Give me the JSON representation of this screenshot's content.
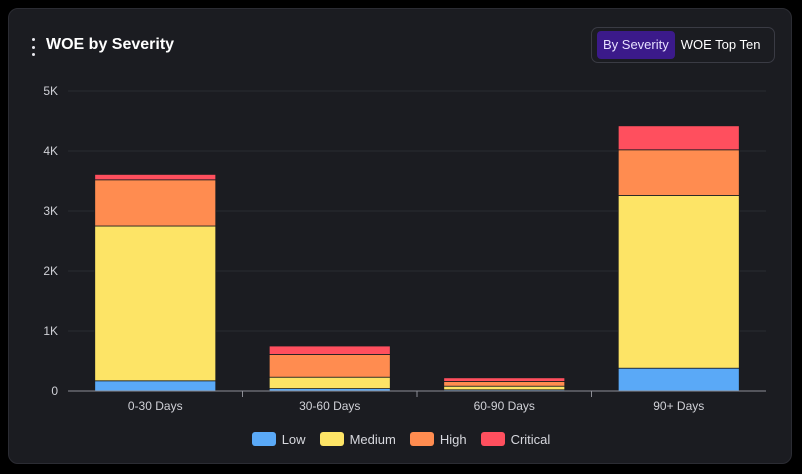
{
  "header": {
    "title": "WOE by Severity",
    "toggle": [
      "By Severity",
      "WOE Top Ten"
    ],
    "active_toggle": "By Severity"
  },
  "icons": {
    "menu": "kebab-menu-icon"
  },
  "colors": {
    "Low": "#5aa9f7",
    "Medium": "#fde466",
    "High": "#ff8c50",
    "Critical": "#ff4f5e",
    "toggle_active": "#3b1a8a"
  },
  "chart_data": {
    "type": "bar",
    "stacked": true,
    "categories": [
      "0-30 Days",
      "30-60 Days",
      "60-90 Days",
      "90+ Days"
    ],
    "series": [
      {
        "name": "Low",
        "values": [
          170,
          40,
          20,
          380
        ]
      },
      {
        "name": "Medium",
        "values": [
          2580,
          190,
          60,
          2880
        ]
      },
      {
        "name": "High",
        "values": [
          770,
          380,
          80,
          760
        ]
      },
      {
        "name": "Critical",
        "values": [
          90,
          140,
          60,
          400
        ]
      }
    ],
    "ylim": [
      0,
      5000
    ],
    "yticks": [
      0,
      1000,
      2000,
      3000,
      4000,
      5000
    ],
    "ytick_labels": [
      "0",
      "1K",
      "2K",
      "3K",
      "4K",
      "5K"
    ],
    "grid": true,
    "legend_position": "bottom"
  }
}
